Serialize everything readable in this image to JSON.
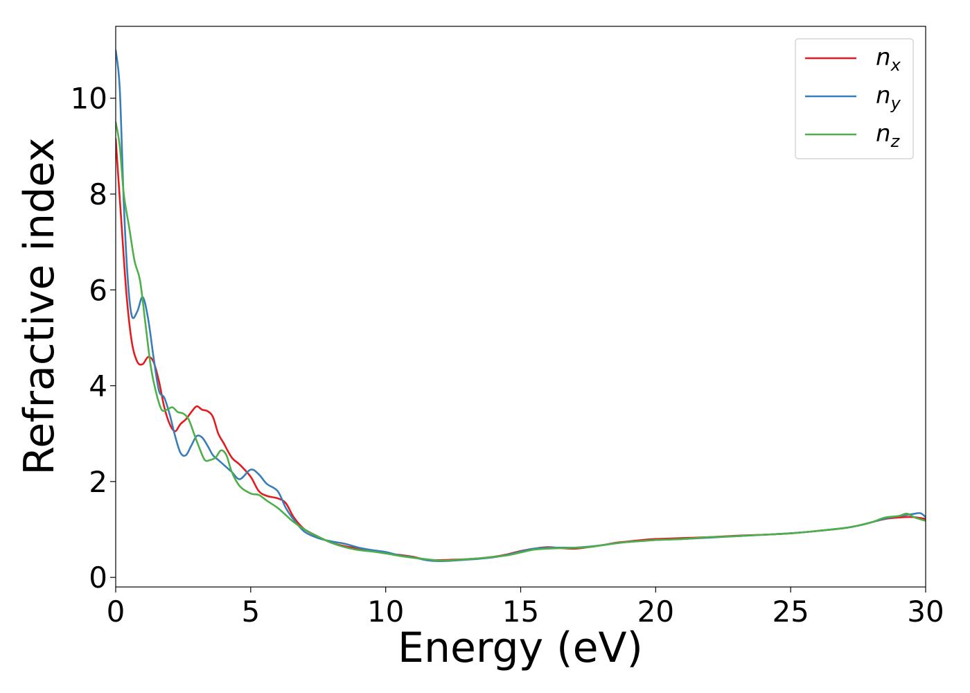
{
  "chart_data": {
    "type": "line",
    "xlabel": "Energy (eV)",
    "ylabel": "Refractive index",
    "xlim": [
      0,
      30
    ],
    "ylim": [
      -0.2,
      11.5
    ],
    "xticks": [
      0,
      5,
      10,
      15,
      20,
      25,
      30
    ],
    "xtick_labels": [
      "0",
      "5",
      "10",
      "15",
      "20",
      "25",
      "30"
    ],
    "yticks": [
      0,
      2,
      4,
      6,
      8,
      10
    ],
    "ytick_labels": [
      "0",
      "2",
      "4",
      "6",
      "8",
      "10"
    ],
    "grid": false,
    "legend_position": "top-right",
    "series": [
      {
        "name": "n_x",
        "label_main": "n",
        "label_sub": "x",
        "color": "#e41a1c",
        "x": [
          0,
          0.2,
          0.4,
          0.6,
          0.8,
          1.0,
          1.2,
          1.4,
          1.6,
          1.8,
          2.0,
          2.2,
          2.4,
          2.6,
          2.8,
          3.0,
          3.2,
          3.4,
          3.6,
          3.8,
          4.0,
          4.3,
          4.6,
          5.0,
          5.3,
          5.6,
          6.0,
          6.3,
          6.6,
          7.0,
          7.5,
          8.0,
          8.5,
          9.0,
          9.5,
          10.0,
          10.5,
          11.0,
          11.5,
          12.0,
          12.5,
          13.0,
          13.5,
          14.0,
          14.5,
          15.0,
          15.5,
          16.0,
          16.5,
          17.0,
          17.5,
          18.0,
          18.5,
          19.0,
          19.5,
          20.0,
          21.0,
          22.0,
          23.0,
          24.0,
          25.0,
          26.0,
          27.0,
          27.5,
          28.0,
          28.5,
          29.0,
          29.5,
          30.0
        ],
        "y": [
          9.15,
          7.5,
          5.9,
          4.9,
          4.5,
          4.45,
          4.6,
          4.5,
          4.1,
          3.55,
          3.2,
          3.05,
          3.2,
          3.3,
          3.45,
          3.57,
          3.5,
          3.47,
          3.35,
          3.0,
          2.8,
          2.5,
          2.35,
          2.1,
          1.8,
          1.7,
          1.65,
          1.55,
          1.25,
          1.0,
          0.85,
          0.72,
          0.65,
          0.6,
          0.55,
          0.5,
          0.47,
          0.43,
          0.37,
          0.36,
          0.37,
          0.38,
          0.4,
          0.43,
          0.48,
          0.55,
          0.6,
          0.63,
          0.61,
          0.6,
          0.63,
          0.67,
          0.72,
          0.75,
          0.78,
          0.8,
          0.82,
          0.84,
          0.87,
          0.89,
          0.92,
          0.97,
          1.03,
          1.08,
          1.15,
          1.22,
          1.25,
          1.26,
          1.22
        ]
      },
      {
        "name": "n_y",
        "label_main": "n",
        "label_sub": "y",
        "color": "#377eb8",
        "x": [
          0,
          0.15,
          0.3,
          0.45,
          0.6,
          0.8,
          1.0,
          1.2,
          1.4,
          1.6,
          1.8,
          2.0,
          2.2,
          2.4,
          2.6,
          2.8,
          3.0,
          3.2,
          3.4,
          3.6,
          3.8,
          4.0,
          4.3,
          4.6,
          5.0,
          5.3,
          5.6,
          6.0,
          6.3,
          6.6,
          7.0,
          7.5,
          8.0,
          8.5,
          9.0,
          9.5,
          10.0,
          10.5,
          11.0,
          11.5,
          12.0,
          12.5,
          13.0,
          13.5,
          14.0,
          14.5,
          15.0,
          15.5,
          16.0,
          16.5,
          17.0,
          17.5,
          18.0,
          18.5,
          19.0,
          19.5,
          20.0,
          21.0,
          22.0,
          23.0,
          24.0,
          25.0,
          26.0,
          27.0,
          27.5,
          28.0,
          28.5,
          29.0,
          29.5,
          29.8,
          30.0
        ],
        "y": [
          11.0,
          10.2,
          7.8,
          6.2,
          5.45,
          5.55,
          5.85,
          5.4,
          4.6,
          3.9,
          3.75,
          3.4,
          2.95,
          2.6,
          2.55,
          2.75,
          2.95,
          2.92,
          2.75,
          2.55,
          2.45,
          2.35,
          2.2,
          2.05,
          2.25,
          2.15,
          1.95,
          1.8,
          1.45,
          1.2,
          0.95,
          0.82,
          0.75,
          0.7,
          0.62,
          0.57,
          0.53,
          0.46,
          0.42,
          0.36,
          0.34,
          0.35,
          0.37,
          0.39,
          0.42,
          0.47,
          0.54,
          0.6,
          0.62,
          0.62,
          0.62,
          0.64,
          0.67,
          0.71,
          0.74,
          0.76,
          0.78,
          0.8,
          0.83,
          0.86,
          0.89,
          0.92,
          0.97,
          1.03,
          1.08,
          1.15,
          1.23,
          1.28,
          1.32,
          1.34,
          1.26
        ]
      },
      {
        "name": "n_z",
        "label_main": "n",
        "label_sub": "z",
        "color": "#4daf4a",
        "x": [
          0,
          0.15,
          0.3,
          0.5,
          0.7,
          0.9,
          1.1,
          1.3,
          1.5,
          1.7,
          1.9,
          2.1,
          2.3,
          2.5,
          2.7,
          2.9,
          3.1,
          3.3,
          3.5,
          3.7,
          3.9,
          4.1,
          4.3,
          4.6,
          5.0,
          5.3,
          5.6,
          6.0,
          6.3,
          6.6,
          7.0,
          7.5,
          8.0,
          8.5,
          9.0,
          9.5,
          10.0,
          10.5,
          11.0,
          11.5,
          12.0,
          12.5,
          13.0,
          13.5,
          14.0,
          14.5,
          15.0,
          15.5,
          16.0,
          16.5,
          17.0,
          17.5,
          18.0,
          18.5,
          19.0,
          19.5,
          20.0,
          21.0,
          22.0,
          23.0,
          24.0,
          25.0,
          26.0,
          27.0,
          27.5,
          28.0,
          28.5,
          29.0,
          29.3,
          29.6,
          30.0
        ],
        "y": [
          9.5,
          9.0,
          8.0,
          7.3,
          6.6,
          6.2,
          5.3,
          4.4,
          3.85,
          3.5,
          3.5,
          3.55,
          3.45,
          3.42,
          3.3,
          3.0,
          2.7,
          2.45,
          2.45,
          2.5,
          2.65,
          2.55,
          2.2,
          1.9,
          1.75,
          1.72,
          1.6,
          1.45,
          1.3,
          1.15,
          1.0,
          0.85,
          0.72,
          0.63,
          0.57,
          0.54,
          0.5,
          0.45,
          0.41,
          0.38,
          0.35,
          0.36,
          0.38,
          0.4,
          0.43,
          0.46,
          0.52,
          0.58,
          0.6,
          0.61,
          0.62,
          0.63,
          0.67,
          0.71,
          0.74,
          0.76,
          0.78,
          0.8,
          0.84,
          0.86,
          0.89,
          0.92,
          0.97,
          1.03,
          1.08,
          1.15,
          1.25,
          1.28,
          1.33,
          1.25,
          1.18
        ]
      }
    ]
  }
}
